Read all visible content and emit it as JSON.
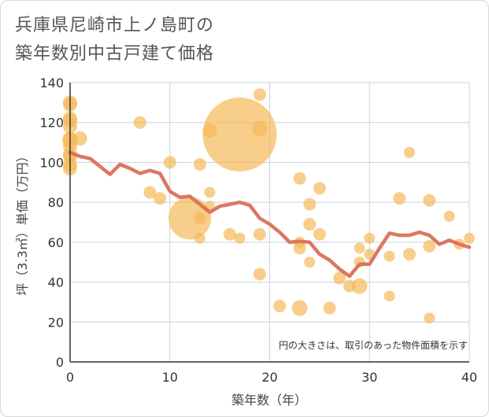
{
  "page": {
    "title_line1": "兵庫県尼崎市上ノ島町の",
    "title_line2": "築年数別中古戸建て価格"
  },
  "chart_data": {
    "type": "scatter",
    "title": "兵庫県尼崎市上ノ島町の築年数別中古戸建て価格",
    "xlabel": "築年数（年）",
    "ylabel": "坪（3.3㎡）単価（万円）",
    "xlim": [
      0,
      40
    ],
    "ylim": [
      0,
      140
    ],
    "xticks": [
      0,
      10,
      20,
      30,
      40
    ],
    "yticks": [
      0,
      20,
      40,
      60,
      80,
      100,
      120,
      140
    ],
    "grid": true,
    "note": "円の大きさは、取引のあった物件面積を示す",
    "colors": {
      "bubble": "#f5b95a",
      "line": "#d9705a",
      "grid": "#c8d2dc"
    },
    "bubbles": [
      {
        "x": 0,
        "y": 130,
        "size": 9
      },
      {
        "x": 0,
        "y": 129,
        "size": 9
      },
      {
        "x": 0,
        "y": 122,
        "size": 9
      },
      {
        "x": 0,
        "y": 121,
        "size": 9
      },
      {
        "x": 0,
        "y": 118,
        "size": 9
      },
      {
        "x": 0,
        "y": 112,
        "size": 9
      },
      {
        "x": 0,
        "y": 111,
        "size": 10
      },
      {
        "x": 0,
        "y": 108,
        "size": 9
      },
      {
        "x": 0,
        "y": 104,
        "size": 9
      },
      {
        "x": 0,
        "y": 103,
        "size": 9
      },
      {
        "x": 0,
        "y": 99,
        "size": 9
      },
      {
        "x": 0,
        "y": 97,
        "size": 9
      },
      {
        "x": 1,
        "y": 112,
        "size": 9
      },
      {
        "x": 7,
        "y": 120,
        "size": 8
      },
      {
        "x": 8,
        "y": 85,
        "size": 8
      },
      {
        "x": 9,
        "y": 82,
        "size": 8
      },
      {
        "x": 10,
        "y": 100,
        "size": 8
      },
      {
        "x": 12,
        "y": 72,
        "size": 27
      },
      {
        "x": 13,
        "y": 99,
        "size": 8
      },
      {
        "x": 13,
        "y": 72,
        "size": 8
      },
      {
        "x": 13,
        "y": 62,
        "size": 7
      },
      {
        "x": 14,
        "y": 116,
        "size": 9
      },
      {
        "x": 14,
        "y": 85,
        "size": 7
      },
      {
        "x": 14,
        "y": 78,
        "size": 7
      },
      {
        "x": 16,
        "y": 64,
        "size": 8
      },
      {
        "x": 17,
        "y": 114,
        "size": 47
      },
      {
        "x": 17,
        "y": 62,
        "size": 7
      },
      {
        "x": 19,
        "y": 134,
        "size": 8
      },
      {
        "x": 19,
        "y": 117,
        "size": 10
      },
      {
        "x": 19,
        "y": 64,
        "size": 8
      },
      {
        "x": 19,
        "y": 44,
        "size": 8
      },
      {
        "x": 21,
        "y": 28,
        "size": 8
      },
      {
        "x": 23,
        "y": 92,
        "size": 8
      },
      {
        "x": 23,
        "y": 60,
        "size": 7
      },
      {
        "x": 23,
        "y": 57,
        "size": 8
      },
      {
        "x": 23,
        "y": 27,
        "size": 10
      },
      {
        "x": 24,
        "y": 79,
        "size": 8
      },
      {
        "x": 24,
        "y": 69,
        "size": 8
      },
      {
        "x": 24,
        "y": 50,
        "size": 7
      },
      {
        "x": 25,
        "y": 87,
        "size": 8
      },
      {
        "x": 25,
        "y": 64,
        "size": 8
      },
      {
        "x": 26,
        "y": 27,
        "size": 8
      },
      {
        "x": 27,
        "y": 42,
        "size": 8
      },
      {
        "x": 28,
        "y": 38,
        "size": 8
      },
      {
        "x": 29,
        "y": 57,
        "size": 7
      },
      {
        "x": 29,
        "y": 50,
        "size": 7
      },
      {
        "x": 29,
        "y": 38,
        "size": 10
      },
      {
        "x": 30,
        "y": 62,
        "size": 7
      },
      {
        "x": 30,
        "y": 54,
        "size": 7
      },
      {
        "x": 32,
        "y": 53,
        "size": 7
      },
      {
        "x": 32,
        "y": 33,
        "size": 7
      },
      {
        "x": 33,
        "y": 82,
        "size": 8
      },
      {
        "x": 34,
        "y": 105,
        "size": 7
      },
      {
        "x": 34,
        "y": 54,
        "size": 8
      },
      {
        "x": 36,
        "y": 81,
        "size": 8
      },
      {
        "x": 36,
        "y": 58,
        "size": 8
      },
      {
        "x": 36,
        "y": 22,
        "size": 7
      },
      {
        "x": 38,
        "y": 73,
        "size": 7
      },
      {
        "x": 39,
        "y": 59,
        "size": 7
      },
      {
        "x": 40,
        "y": 62,
        "size": 7
      }
    ],
    "trend": [
      {
        "x": 0,
        "y": 105
      },
      {
        "x": 1,
        "y": 103
      },
      {
        "x": 2,
        "y": 102
      },
      {
        "x": 3,
        "y": 98
      },
      {
        "x": 4,
        "y": 94
      },
      {
        "x": 5,
        "y": 99
      },
      {
        "x": 6,
        "y": 97
      },
      {
        "x": 7,
        "y": 94.5
      },
      {
        "x": 8,
        "y": 96
      },
      {
        "x": 9,
        "y": 94.5
      },
      {
        "x": 10,
        "y": 85.5
      },
      {
        "x": 11,
        "y": 82.5
      },
      {
        "x": 12,
        "y": 83
      },
      {
        "x": 13,
        "y": 79
      },
      {
        "x": 14,
        "y": 75
      },
      {
        "x": 15,
        "y": 78
      },
      {
        "x": 16,
        "y": 79
      },
      {
        "x": 17,
        "y": 80
      },
      {
        "x": 18,
        "y": 78.5
      },
      {
        "x": 19,
        "y": 72
      },
      {
        "x": 20,
        "y": 69
      },
      {
        "x": 21,
        "y": 65
      },
      {
        "x": 22,
        "y": 60
      },
      {
        "x": 23,
        "y": 60.5
      },
      {
        "x": 24,
        "y": 60
      },
      {
        "x": 25,
        "y": 54
      },
      {
        "x": 26,
        "y": 51
      },
      {
        "x": 27,
        "y": 46.5
      },
      {
        "x": 28,
        "y": 43
      },
      {
        "x": 29,
        "y": 49
      },
      {
        "x": 30,
        "y": 49
      },
      {
        "x": 31,
        "y": 57
      },
      {
        "x": 32,
        "y": 64.5
      },
      {
        "x": 33,
        "y": 63.5
      },
      {
        "x": 34,
        "y": 63.5
      },
      {
        "x": 35,
        "y": 65
      },
      {
        "x": 36,
        "y": 63.5
      },
      {
        "x": 37,
        "y": 59
      },
      {
        "x": 38,
        "y": 61
      },
      {
        "x": 39,
        "y": 59
      },
      {
        "x": 40,
        "y": 57.5
      }
    ]
  }
}
